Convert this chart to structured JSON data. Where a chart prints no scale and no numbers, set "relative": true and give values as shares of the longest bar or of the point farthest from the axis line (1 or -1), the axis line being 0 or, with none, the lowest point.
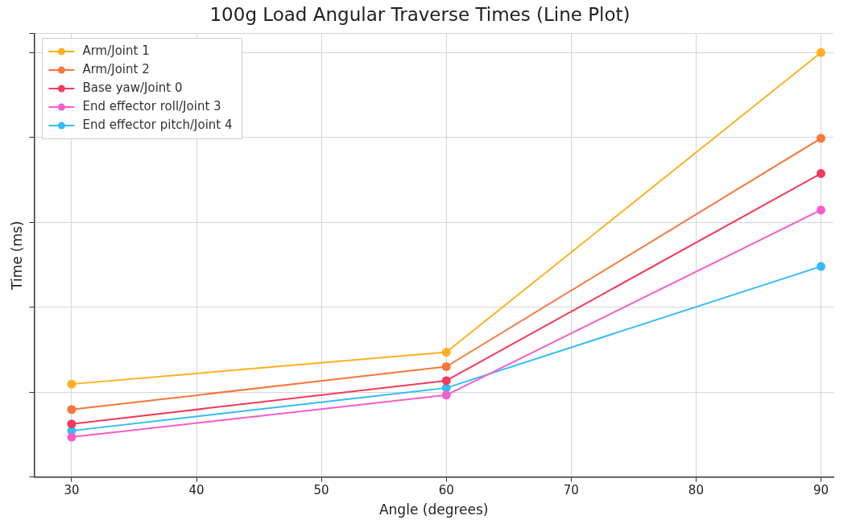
{
  "chart_data": {
    "type": "line",
    "title": "100g Load Angular Traverse Times (Line Plot)",
    "xlabel": "Angle (degrees)",
    "ylabel": "Time (ms)",
    "relative": true,
    "x": [
      30,
      60,
      90
    ],
    "xlim": [
      27,
      91
    ],
    "xticks": [
      30,
      40,
      50,
      60,
      70,
      80,
      90
    ],
    "grid": true,
    "legend": "top left",
    "marker": "circle",
    "line_style": "solid",
    "series": [
      {
        "name": "Arm/Joint 1",
        "color": "#ffb01f",
        "values": [
          0.219,
          0.294,
          1
        ]
      },
      {
        "name": "Arm/Joint 2",
        "color": "#f8773a",
        "values": [
          0.159,
          0.26,
          0.798
        ]
      },
      {
        "name": "Base yaw/Joint 0",
        "color": "#f23a5c",
        "values": [
          0.125,
          0.227,
          0.715
        ]
      },
      {
        "name": "End effector roll/Joint 3",
        "color": "#f95ccb",
        "values": [
          0.094,
          0.193,
          0.629
        ]
      },
      {
        "name": "End effector pitch/Joint 4",
        "color": "#33bcf6",
        "values": [
          0.109,
          0.21,
          0.496
        ]
      }
    ]
  }
}
